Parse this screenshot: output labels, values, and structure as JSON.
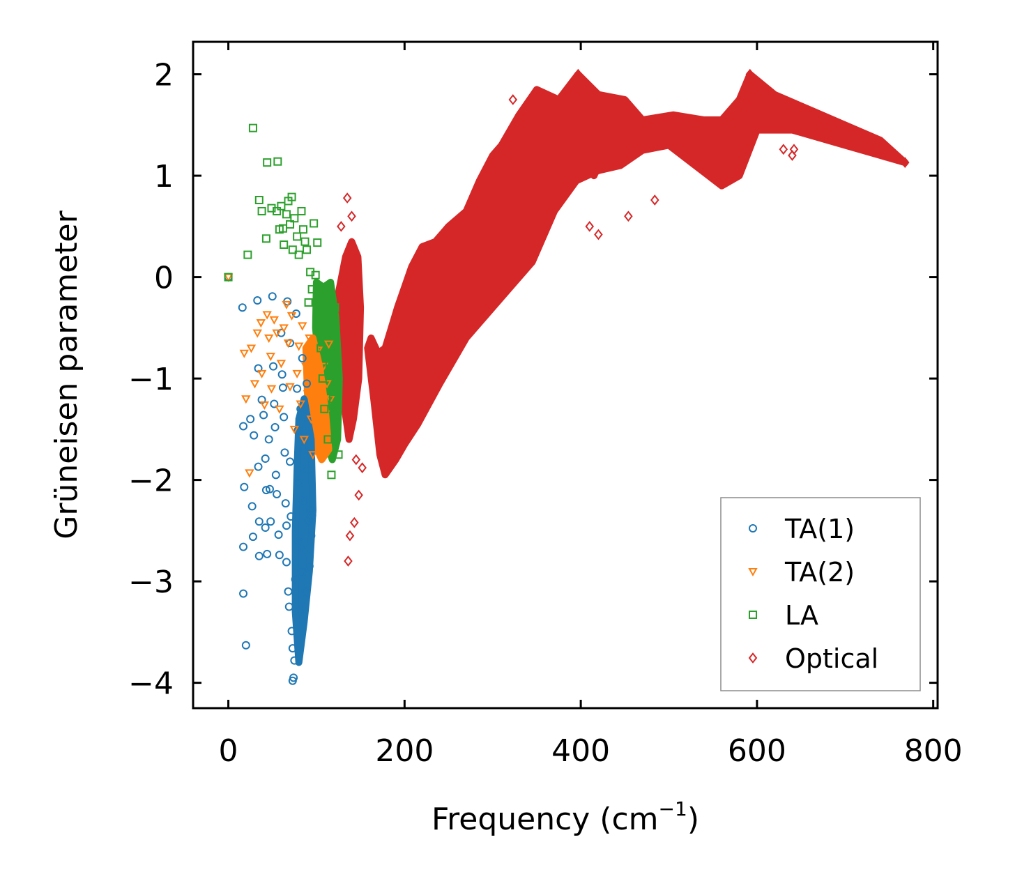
{
  "chart_data": {
    "type": "scatter",
    "xlabel": "Frequency (cm",
    "xlabel_sup": "−1",
    "xlabel_close": ")",
    "ylabel": "Grüneisen parameter",
    "xlim": [
      -40,
      805
    ],
    "ylim": [
      -4.25,
      2.32
    ],
    "xticks": [
      0,
      200,
      400,
      600,
      800
    ],
    "xtick_labels": [
      "0",
      "200",
      "400",
      "600",
      "800"
    ],
    "yticks": [
      -4,
      -3,
      -2,
      -1,
      0,
      1,
      2
    ],
    "ytick_labels": [
      "−4",
      "−3",
      "−2",
      "−1",
      "0",
      "1",
      "2"
    ],
    "legend_position": "lower-right",
    "series": [
      {
        "name": "TA(1)",
        "marker": "circle",
        "color": "#1f77b4",
        "points": [
          [
            0,
            0
          ],
          [
            16,
            -0.3
          ],
          [
            17,
            -1.47
          ],
          [
            18,
            -2.07
          ],
          [
            17,
            -2.66
          ],
          [
            17,
            -3.12
          ],
          [
            20,
            -3.63
          ],
          [
            25,
            -1.4
          ],
          [
            27,
            -2.26
          ],
          [
            28,
            -2.56
          ],
          [
            29,
            -1.56
          ],
          [
            33,
            -0.23
          ],
          [
            34,
            -0.9
          ],
          [
            34,
            -1.87
          ],
          [
            35,
            -2.41
          ],
          [
            35,
            -2.75
          ],
          [
            38,
            -1.21
          ],
          [
            40,
            -1.36
          ],
          [
            42,
            -1.79
          ],
          [
            42,
            -2.47
          ],
          [
            43,
            -2.1
          ],
          [
            44,
            -2.73
          ],
          [
            46,
            -1.6
          ],
          [
            47,
            -2.09
          ],
          [
            48,
            -2.41
          ],
          [
            50,
            -0.19
          ],
          [
            51,
            -0.88
          ],
          [
            52,
            -1.25
          ],
          [
            53,
            -1.48
          ],
          [
            54,
            -1.95
          ],
          [
            55,
            -2.14
          ],
          [
            57,
            -2.54
          ],
          [
            58,
            -2.74
          ],
          [
            60,
            -0.55
          ],
          [
            61,
            -0.96
          ],
          [
            62,
            -1.09
          ],
          [
            63,
            -1.38
          ],
          [
            64,
            -1.73
          ],
          [
            65,
            -2.23
          ],
          [
            66,
            -2.45
          ],
          [
            66,
            -2.81
          ],
          [
            67,
            -0.24
          ],
          [
            68,
            -3.1
          ],
          [
            69,
            -3.25
          ],
          [
            70,
            -0.65
          ],
          [
            70,
            -1.82
          ],
          [
            71,
            -2.36
          ],
          [
            72,
            -3.49
          ],
          [
            73,
            -3.66
          ],
          [
            73,
            -3.98
          ],
          [
            74,
            -3.95
          ],
          [
            75,
            -3.78
          ],
          [
            76,
            -2.98
          ],
          [
            77,
            -0.36
          ],
          [
            78,
            -1.1
          ],
          [
            79,
            -1.51
          ],
          [
            80,
            -2.03
          ],
          [
            80,
            -2.61
          ],
          [
            81,
            -3.3
          ],
          [
            82,
            -1.3
          ],
          [
            83,
            -2.9
          ],
          [
            84,
            -0.8
          ],
          [
            85,
            -1.7
          ],
          [
            86,
            -2.2
          ],
          [
            87,
            -2.7
          ],
          [
            88,
            -3.1
          ],
          [
            89,
            -1.05
          ],
          [
            90,
            -1.9
          ],
          [
            91,
            -2.4
          ],
          [
            92,
            -2.85
          ],
          [
            93,
            -2.3
          ],
          [
            94,
            -2.55
          ],
          [
            95,
            -2.35
          ]
        ]
      },
      {
        "name": "TA(2)",
        "marker": "triangle-down",
        "color": "#ff7f0e",
        "points": [
          [
            0,
            0
          ],
          [
            18,
            -0.75
          ],
          [
            20,
            -1.2
          ],
          [
            24,
            -1.93
          ],
          [
            26,
            -0.7
          ],
          [
            30,
            -1.05
          ],
          [
            33,
            -0.55
          ],
          [
            37,
            -0.45
          ],
          [
            38,
            -0.95
          ],
          [
            41,
            -1.26
          ],
          [
            44,
            -0.37
          ],
          [
            46,
            -0.6
          ],
          [
            48,
            -0.78
          ],
          [
            49,
            -1.1
          ],
          [
            52,
            -0.42
          ],
          [
            55,
            -0.55
          ],
          [
            58,
            -1.3
          ],
          [
            60,
            -0.85
          ],
          [
            63,
            -0.5
          ],
          [
            66,
            -0.27
          ],
          [
            68,
            -0.65
          ],
          [
            70,
            -1.08
          ],
          [
            72,
            -0.38
          ],
          [
            75,
            -1.5
          ],
          [
            78,
            -0.95
          ],
          [
            80,
            -0.68
          ],
          [
            82,
            -1.25
          ],
          [
            84,
            -0.48
          ],
          [
            86,
            -1.6
          ],
          [
            88,
            -0.88
          ],
          [
            90,
            -1.15
          ],
          [
            92,
            -0.6
          ],
          [
            94,
            -1.4
          ],
          [
            96,
            -1.75
          ],
          [
            98,
            -0.98
          ],
          [
            100,
            -1.3
          ],
          [
            102,
            -0.72
          ],
          [
            104,
            -1.55
          ],
          [
            106,
            -1.12
          ],
          [
            108,
            -0.88
          ],
          [
            110,
            -1.35
          ],
          [
            112,
            -1.05
          ],
          [
            114,
            -0.66
          ],
          [
            116,
            -1.2
          ]
        ]
      },
      {
        "name": "LA",
        "marker": "square",
        "color": "#2ca02c",
        "points": [
          [
            0,
            0
          ],
          [
            22,
            0.22
          ],
          [
            28,
            1.47
          ],
          [
            35,
            0.76
          ],
          [
            38,
            0.65
          ],
          [
            43,
            0.38
          ],
          [
            44,
            1.13
          ],
          [
            49,
            0.68
          ],
          [
            55,
            0.65
          ],
          [
            56,
            1.14
          ],
          [
            58,
            0.47
          ],
          [
            60,
            0.7
          ],
          [
            62,
            0.48
          ],
          [
            63,
            0.32
          ],
          [
            66,
            0.62
          ],
          [
            68,
            0.75
          ],
          [
            70,
            0.52
          ],
          [
            72,
            0.79
          ],
          [
            73,
            0.27
          ],
          [
            75,
            0.58
          ],
          [
            78,
            0.4
          ],
          [
            80,
            0.22
          ],
          [
            83,
            0.65
          ],
          [
            85,
            0.47
          ],
          [
            87,
            0.35
          ],
          [
            89,
            0.27
          ],
          [
            91,
            -0.25
          ],
          [
            93,
            0.05
          ],
          [
            95,
            -0.12
          ],
          [
            97,
            0.53
          ],
          [
            99,
            0.02
          ],
          [
            101,
            0.34
          ],
          [
            103,
            -0.4
          ],
          [
            105,
            -0.7
          ],
          [
            107,
            -1.0
          ],
          [
            109,
            -1.3
          ],
          [
            111,
            -0.5
          ],
          [
            113,
            -1.6
          ],
          [
            115,
            -0.85
          ],
          [
            117,
            -1.95
          ],
          [
            119,
            -1.2
          ],
          [
            121,
            -0.3
          ],
          [
            123,
            -1.45
          ],
          [
            125,
            -1.75
          ]
        ]
      },
      {
        "name": "Optical",
        "marker": "diamond",
        "color": "#d62728",
        "points": [
          [
            128,
            0.5
          ],
          [
            135,
            0.78
          ],
          [
            140,
            0.6
          ],
          [
            136,
            -2.8
          ],
          [
            138,
            -2.55
          ],
          [
            143,
            -2.42
          ],
          [
            148,
            -2.15
          ],
          [
            145,
            -1.8
          ],
          [
            152,
            -1.88
          ],
          [
            454,
            0.6
          ],
          [
            484,
            0.76
          ],
          [
            323,
            1.75
          ],
          [
            630,
            1.26
          ],
          [
            640,
            1.2
          ],
          [
            642,
            1.26
          ],
          [
            560,
            1.3
          ],
          [
            577,
            1.05
          ],
          [
            410,
            0.5
          ],
          [
            420,
            0.42
          ],
          [
            397,
            2.0
          ],
          [
            592,
            2.0
          ],
          [
            768,
            1.13
          ]
        ]
      }
    ]
  }
}
